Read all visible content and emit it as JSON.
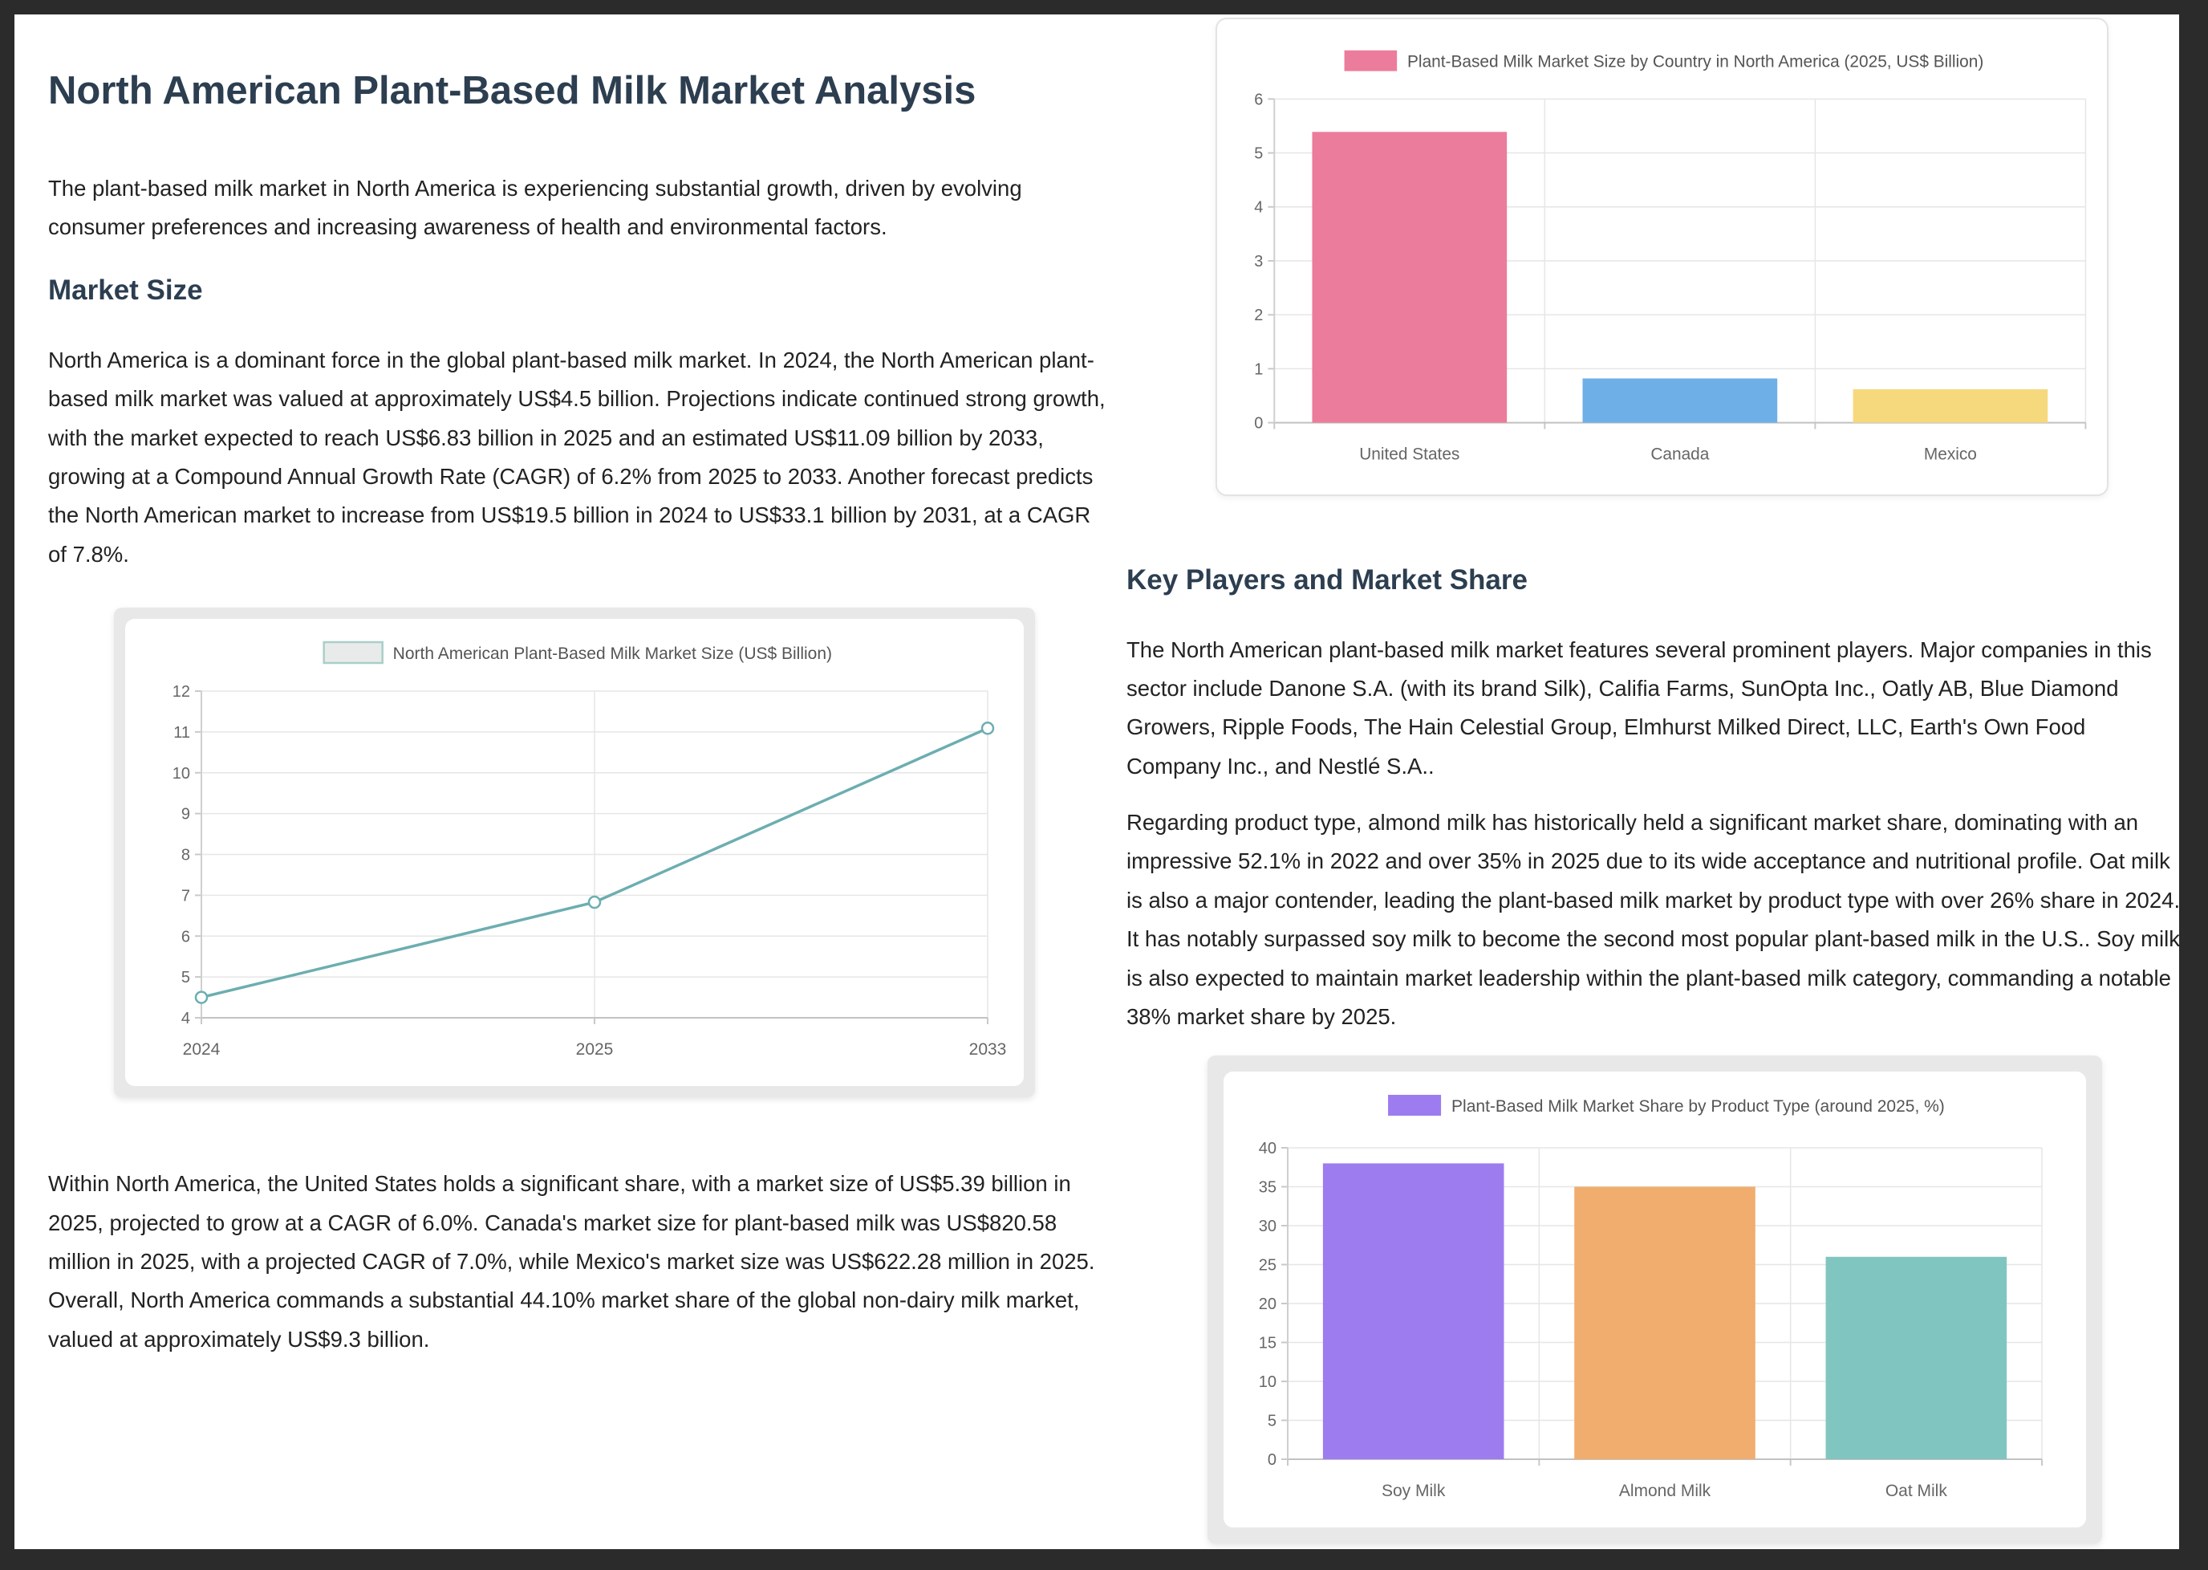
{
  "page": {
    "title": "North American Plant-Based Milk Market Analysis",
    "intro": "The plant-based milk market in North America is experiencing substantial growth, driven by evolving consumer preferences and increasing awareness of health and environmental factors.",
    "sections": {
      "market_size": {
        "heading": "Market Size",
        "paragraph1": "North America is a dominant force in the global plant-based milk market. In 2024, the North American plant-based milk market was valued at approximately US$4.5 billion. Projections indicate continued strong growth, with the market expected to reach US$6.83 billion in 2025 and an estimated US$11.09 billion by 2033, growing at a Compound Annual Growth Rate (CAGR) of 6.2% from 2025 to 2033. Another forecast predicts the North American market to increase from US$19.5 billion in 2024 to US$33.1 billion by 2031, at a CAGR of 7.8%.",
        "paragraph2": "Within North America, the United States holds a significant share, with a market size of US$5.39 billion in 2025, projected to grow at a CAGR of 6.0%. Canada's market size for plant-based milk was US$820.58 million in 2025, with a projected CAGR of 7.0%, while Mexico's market size was US$622.28 million in 2025. Overall, North America commands a substantial 44.10% market share of the global non-dairy milk market, valued at approximately US$9.3 billion."
      },
      "key_players": {
        "heading": "Key Players and Market Share",
        "paragraph1": "The North American plant-based milk market features several prominent players. Major companies in this sector include Danone S.A. (with its brand Silk), Califia Farms, SunOpta Inc., Oatly AB, Blue Diamond Growers, Ripple Foods, The Hain Celestial Group, Elmhurst Milked Direct, LLC, Earth's Own Food Company Inc., and Nestlé S.A..",
        "paragraph2": "Regarding product type, almond milk has historically held a significant market share, dominating with an impressive 52.1% in 2022 and over 35% in 2025 due to its wide acceptance and nutritional profile. Oat milk is also a major contender, leading the plant-based milk market by product type with over 26% share in 2024. It has notably surpassed soy milk to become the second most popular plant-based milk in the U.S.. Soy milk is also expected to maintain market leadership within the plant-based milk category, commanding a notable 38% market share by 2025."
      }
    }
  },
  "colors": {
    "page_background": "#2b2b2b",
    "sheet_background": "#ffffff",
    "heading_text": "#2c3e50",
    "body_text": "#222222",
    "axis_label": "#666666",
    "legend_text": "#555555",
    "gridline": "#e6e6e6",
    "axis_line": "#c2c2c2",
    "frame_gray": "#e8e8e8"
  },
  "chart_data": [
    {
      "type": "line",
      "legend": "North American Plant-Based Milk Market Size (US$ Billion)",
      "x": [
        "2024",
        "2025",
        "2033"
      ],
      "values": [
        4.5,
        6.83,
        11.09
      ],
      "ylim": [
        4,
        12
      ],
      "ytick_step": 1,
      "xlabel": "",
      "ylabel": "",
      "grid": true,
      "legend_position": "top",
      "line_color": "#6caeb0",
      "legend_swatch_fill": "#e9ebea",
      "legend_swatch_stroke": "#a9cfc9",
      "grid_color": "#e6e6e6"
    },
    {
      "type": "bar",
      "legend": "Plant-Based Milk Market Size by Country in North America (2025, US$ Billion)",
      "categories": [
        "United States",
        "Canada",
        "Mexico"
      ],
      "values": [
        5.39,
        0.82,
        0.62
      ],
      "ylim": [
        0,
        6
      ],
      "ytick_step": 1,
      "xlabel": "",
      "ylabel": "",
      "grid": true,
      "legend_position": "top",
      "bar_colors": [
        "#ec7c9b",
        "#6fafe8",
        "#f6d97d"
      ],
      "legend_swatch_fill": "#ec7c9b",
      "grid_color": "#e6e6e6"
    },
    {
      "type": "bar",
      "legend": "Plant-Based Milk Market Share by Product Type (around 2025, %)",
      "categories": [
        "Soy Milk",
        "Almond Milk",
        "Oat Milk"
      ],
      "values": [
        38,
        35,
        26
      ],
      "ylim": [
        0,
        40
      ],
      "ytick_step": 5,
      "xlabel": "",
      "ylabel": "",
      "grid": true,
      "legend_position": "top",
      "bar_colors": [
        "#9d7cf0",
        "#f0ad6d",
        "#81c5c1"
      ],
      "legend_swatch_fill": "#9d7cf0",
      "grid_color": "#e6e6e6"
    }
  ]
}
